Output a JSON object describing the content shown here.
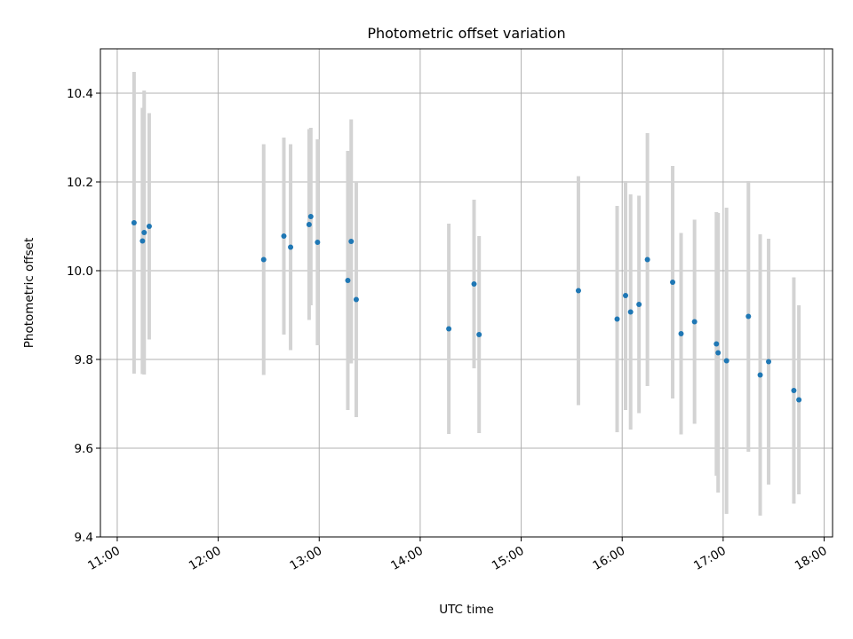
{
  "chart_data": {
    "type": "scatter",
    "title": "Photometric offset variation",
    "xlabel": "UTC time",
    "ylabel": "Photometric offset",
    "x_ticks": [
      "11:00",
      "12:00",
      "13:00",
      "14:00",
      "15:00",
      "16:00",
      "17:00",
      "18:00"
    ],
    "y_ticks": [
      "9.4",
      "9.6",
      "9.8",
      "10.0",
      "10.2",
      "10.4"
    ],
    "xlim": [
      "10:50",
      "18:05"
    ],
    "ylim": [
      9.4,
      10.5
    ],
    "grid": true,
    "colors": {
      "point": "#1f77b4",
      "errorbar": "#d3d3d3"
    },
    "series": [
      {
        "points": [
          {
            "x": "11:10",
            "y": 10.108,
            "err": 0.34
          },
          {
            "x": "11:15",
            "y": 10.067,
            "err": 0.3
          },
          {
            "x": "11:16",
            "y": 10.086,
            "err": 0.32
          },
          {
            "x": "11:19",
            "y": 10.1,
            "err": 0.255
          },
          {
            "x": "12:27",
            "y": 10.025,
            "err": 0.26
          },
          {
            "x": "12:39",
            "y": 10.078,
            "err": 0.222
          },
          {
            "x": "12:43",
            "y": 10.053,
            "err": 0.232
          },
          {
            "x": "12:54",
            "y": 10.104,
            "err": 0.215
          },
          {
            "x": "12:55",
            "y": 10.122,
            "err": 0.2
          },
          {
            "x": "12:59",
            "y": 10.064,
            "err": 0.232
          },
          {
            "x": "13:17",
            "y": 9.978,
            "err": 0.292
          },
          {
            "x": "13:19",
            "y": 10.066,
            "err": 0.275
          },
          {
            "x": "13:22",
            "y": 9.935,
            "err": 0.265
          },
          {
            "x": "14:17",
            "y": 9.869,
            "err": 0.237
          },
          {
            "x": "14:32",
            "y": 9.97,
            "err": 0.19
          },
          {
            "x": "14:35",
            "y": 9.856,
            "err": 0.222
          },
          {
            "x": "15:34",
            "y": 9.955,
            "err": 0.258
          },
          {
            "x": "15:57",
            "y": 9.891,
            "err": 0.255
          },
          {
            "x": "16:02",
            "y": 9.944,
            "err": 0.258
          },
          {
            "x": "16:05",
            "y": 9.907,
            "err": 0.265
          },
          {
            "x": "16:10",
            "y": 9.924,
            "err": 0.245
          },
          {
            "x": "16:15",
            "y": 10.025,
            "err": 0.285
          },
          {
            "x": "16:30",
            "y": 9.974,
            "err": 0.262
          },
          {
            "x": "16:35",
            "y": 9.858,
            "err": 0.227
          },
          {
            "x": "16:43",
            "y": 9.885,
            "err": 0.23
          },
          {
            "x": "16:56",
            "y": 9.835,
            "err": 0.297
          },
          {
            "x": "16:57",
            "y": 9.815,
            "err": 0.315
          },
          {
            "x": "17:02",
            "y": 9.797,
            "err": 0.345
          },
          {
            "x": "17:15",
            "y": 9.897,
            "err": 0.305
          },
          {
            "x": "17:22",
            "y": 9.765,
            "err": 0.317
          },
          {
            "x": "17:27",
            "y": 9.795,
            "err": 0.277
          },
          {
            "x": "17:42",
            "y": 9.73,
            "err": 0.255
          },
          {
            "x": "17:45",
            "y": 9.709,
            "err": 0.213
          }
        ]
      }
    ]
  }
}
